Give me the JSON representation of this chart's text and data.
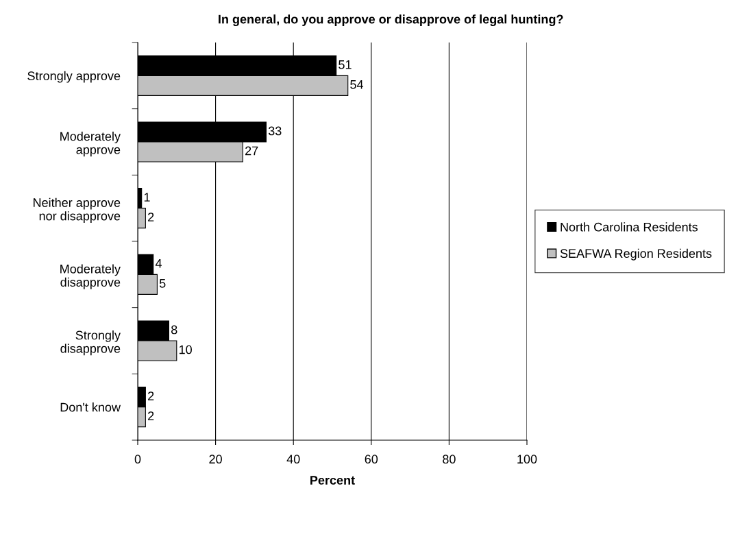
{
  "chart_data": {
    "type": "bar",
    "orientation": "horizontal",
    "title": "In general, do you approve or disapprove of legal hunting?",
    "xlabel": "Percent",
    "categories": [
      "Strongly approve",
      "Moderately\napprove",
      "Neither approve\nnor disapprove",
      "Moderately\ndisapprove",
      "Strongly\ndisapprove",
      "Don't know"
    ],
    "series": [
      {
        "name": "North Carolina Residents",
        "color": "#000000",
        "values": [
          51,
          33,
          1,
          4,
          8,
          2
        ]
      },
      {
        "name": "SEAFWA Region Residents",
        "color": "#c0c0c0",
        "values": [
          54,
          27,
          2,
          5,
          10,
          2
        ]
      }
    ],
    "xlim": [
      0,
      100
    ],
    "xticks": [
      0,
      20,
      40,
      60,
      80,
      100
    ],
    "grid": "x",
    "legend": "right",
    "data_labels": true
  }
}
